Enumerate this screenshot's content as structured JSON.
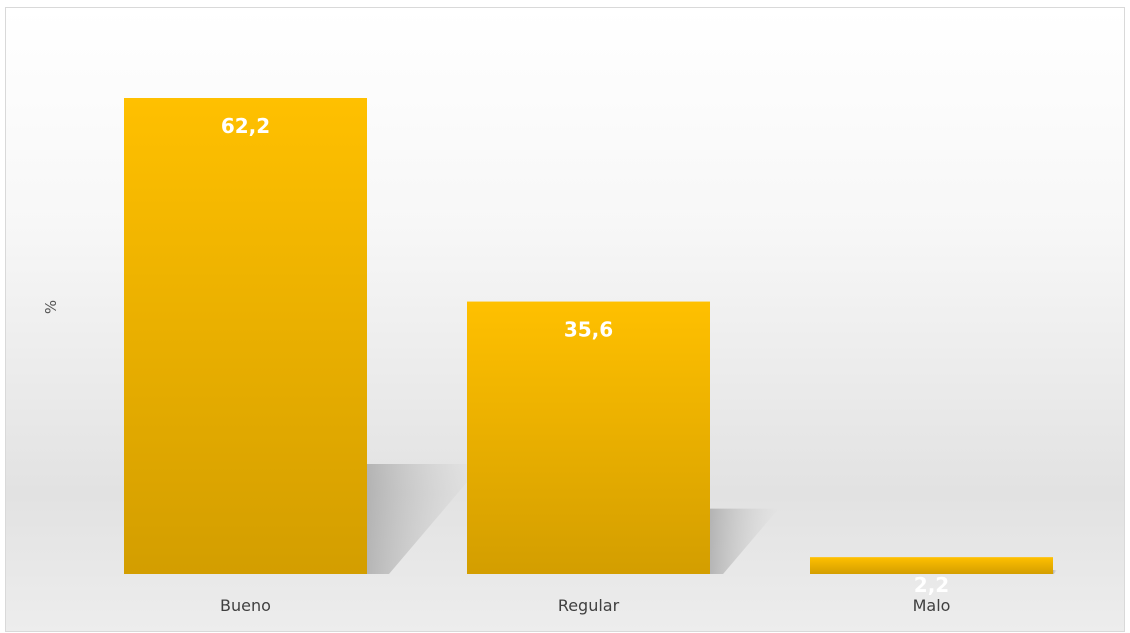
{
  "chart_data": {
    "type": "bar",
    "title": "",
    "xlabel": "",
    "ylabel": "%",
    "categories": [
      "Bueno",
      "Regular",
      "Malo"
    ],
    "values": [
      62.2,
      35.6,
      2.2
    ],
    "value_labels": [
      "62,2",
      "35,6",
      "2,2"
    ],
    "ylim": [
      0,
      62.2
    ],
    "grid": false,
    "legend": "none",
    "bar_color_top": "#FFC000",
    "bar_color_bottom": "#D39E00"
  }
}
